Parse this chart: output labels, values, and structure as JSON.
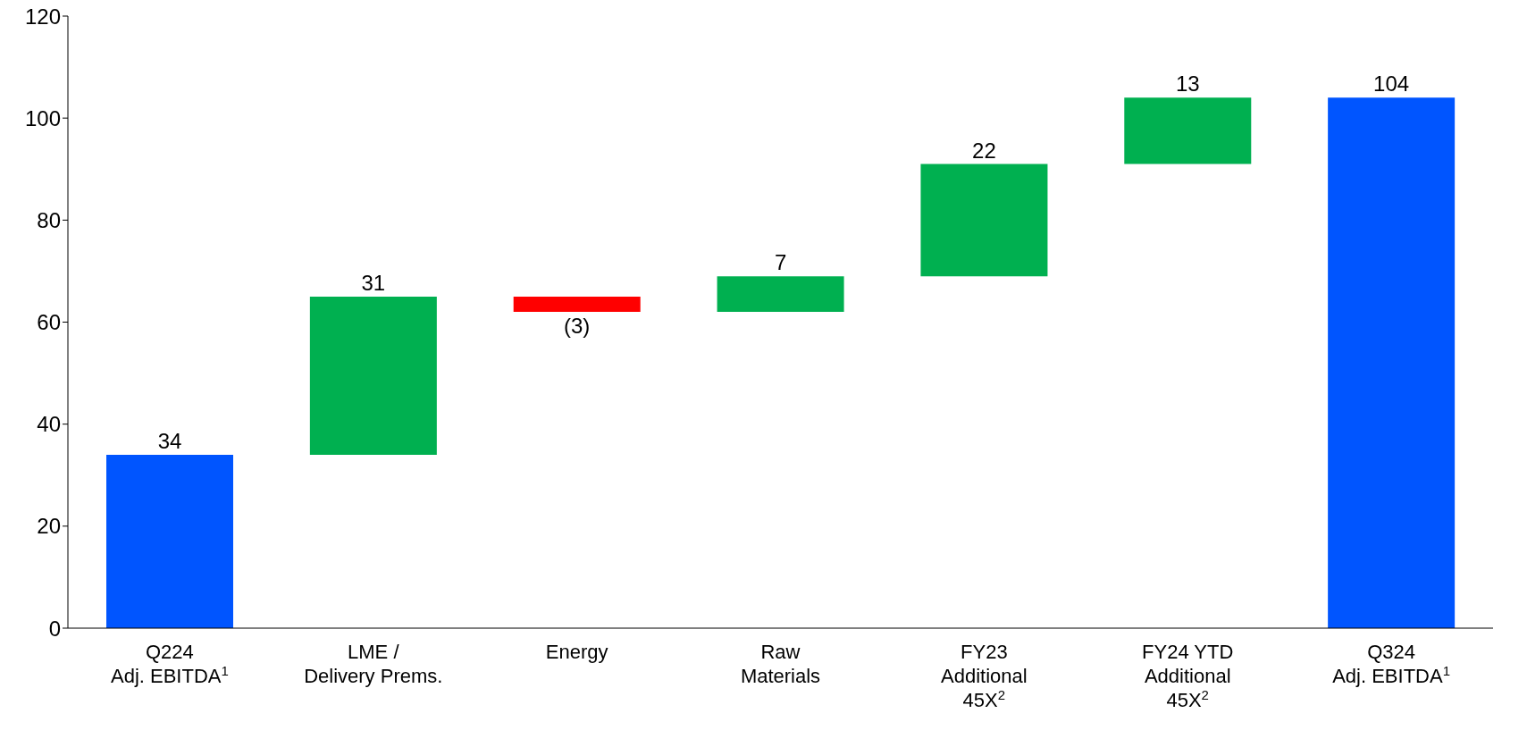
{
  "chart_data": {
    "type": "bar",
    "categories": [
      "Q224\nAdj. EBITDA$^{1}$",
      "LME /\nDelivery Prems.",
      "Energy",
      "Raw\nMaterials",
      "FY23\nAdditional\n45X$^{2}$",
      "FY24 YTD\nAdditional\n45X$^{2}$",
      "Q324\nAdj. EBITDA$^{1}$"
    ],
    "values": [
      34,
      31,
      -3,
      7,
      22,
      13,
      104
    ],
    "base": [
      0,
      34,
      65,
      62,
      69,
      91,
      0
    ],
    "colors": [
      "#0055ff",
      "#00b050",
      "#ff0000",
      "#00b050",
      "#00b050",
      "#00b050",
      "#0055ff"
    ],
    "value_labels": [
      "34",
      "31",
      "(3)",
      "7",
      "22",
      "13",
      "104"
    ],
    "ylim": [
      0,
      120
    ],
    "yticks": [
      0,
      20,
      40,
      60,
      80,
      100,
      120
    ],
    "grid": false
  }
}
